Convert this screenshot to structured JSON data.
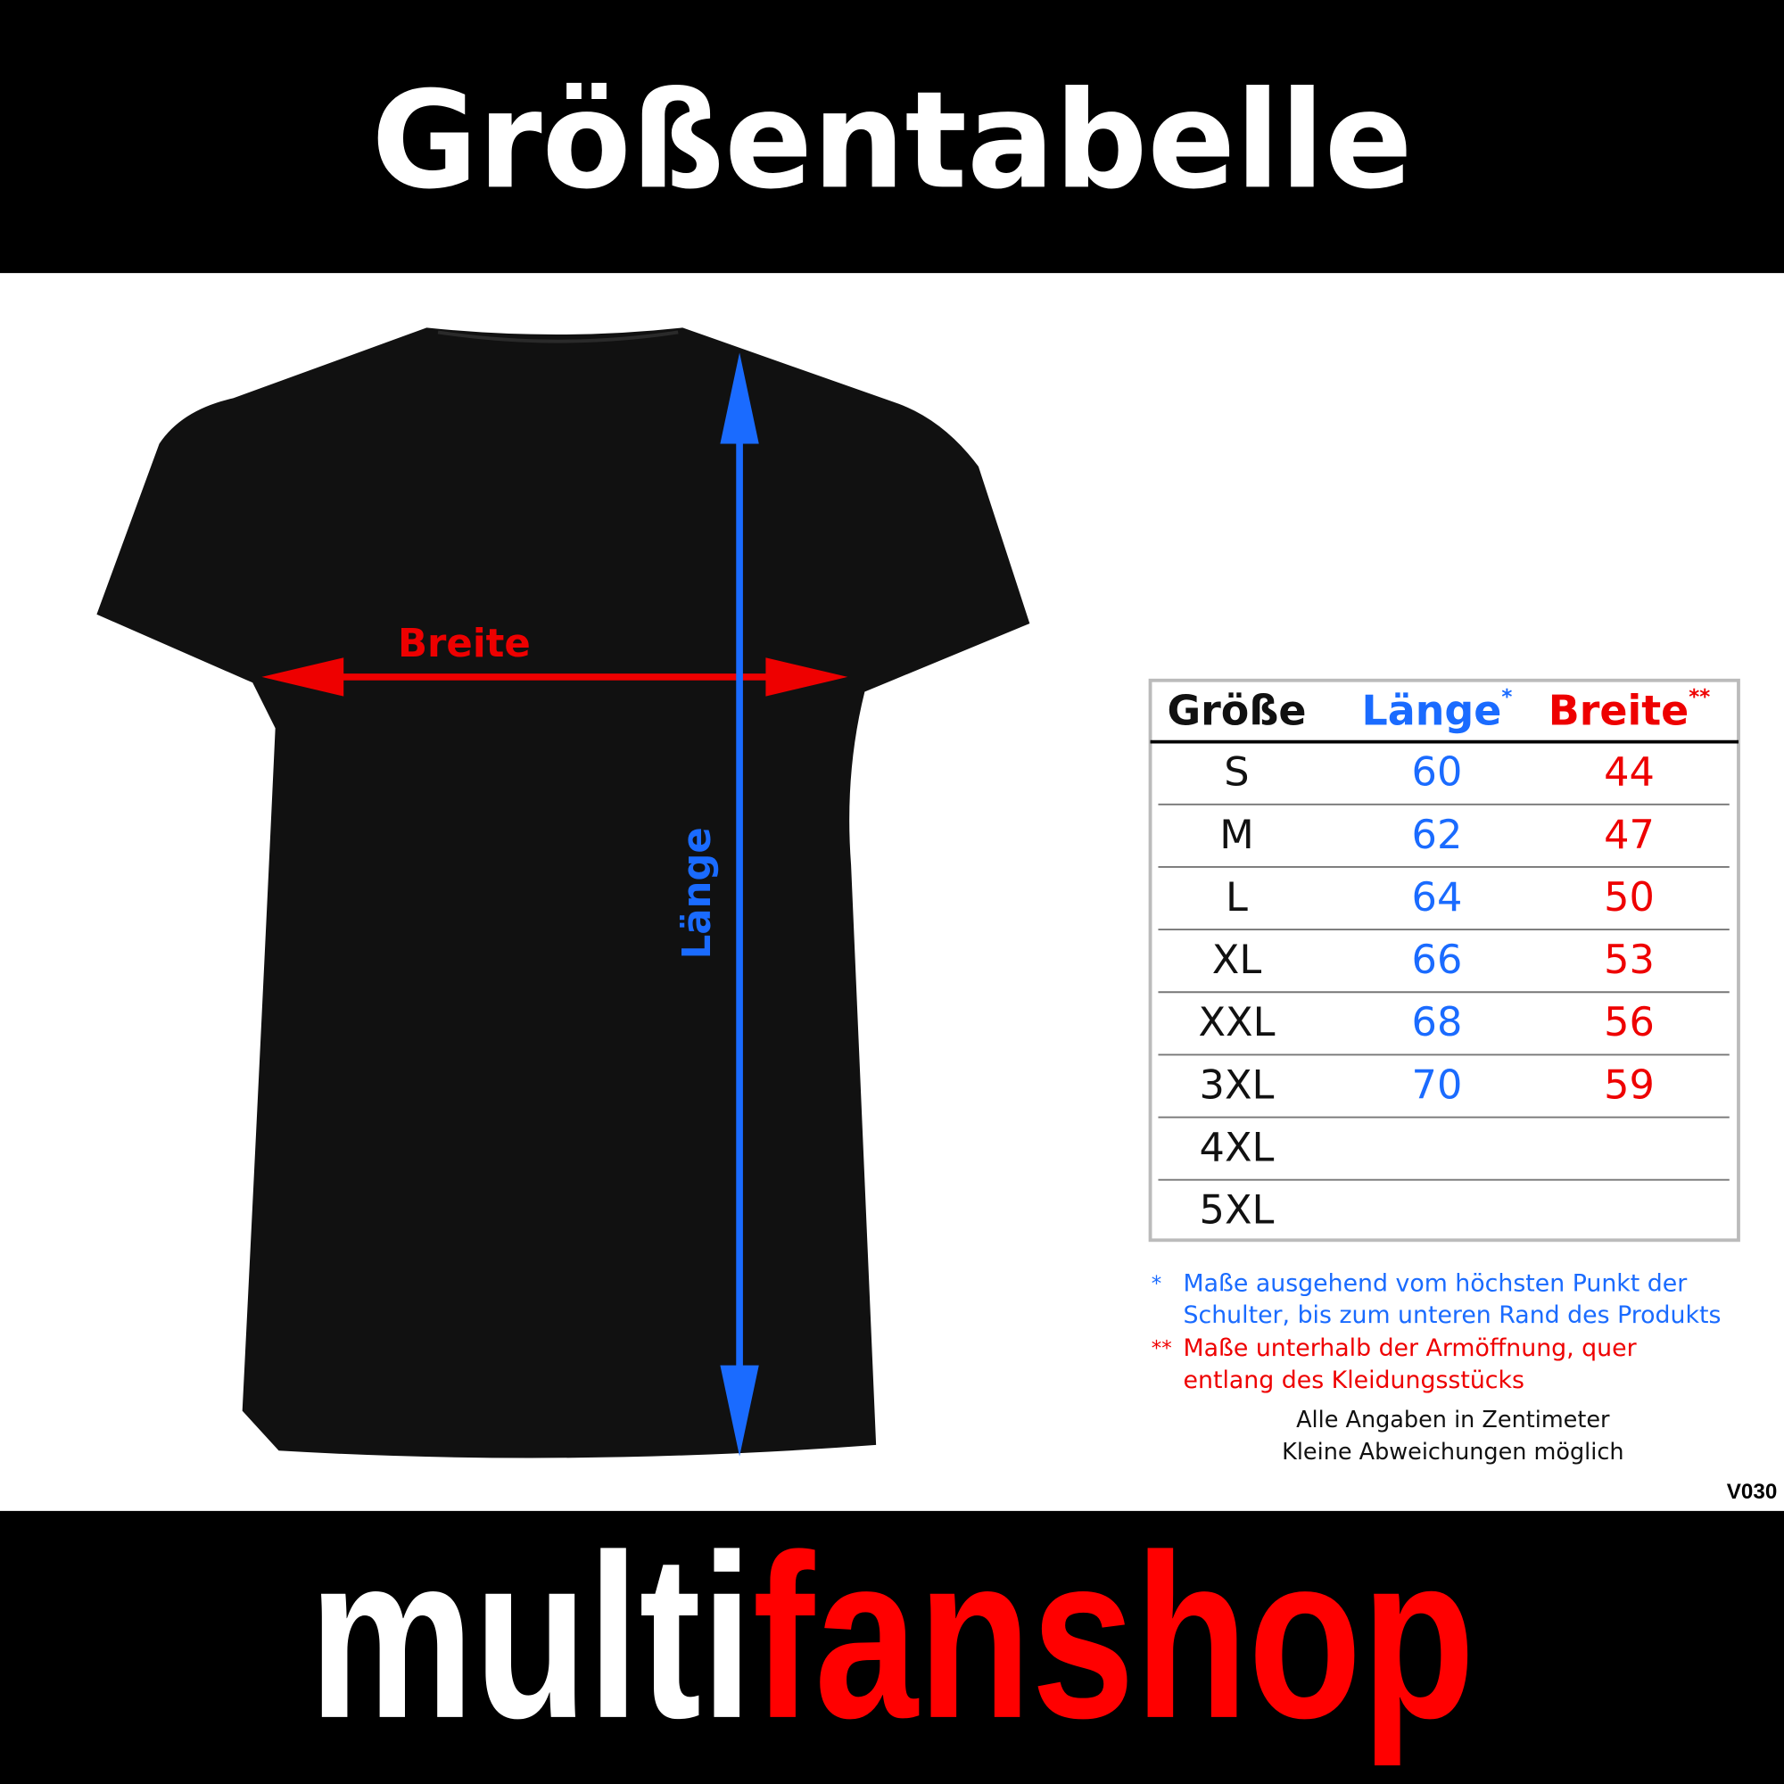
{
  "header": {
    "title": "Größentabelle"
  },
  "illustration": {
    "width_label": "Breite",
    "length_label": "Länge"
  },
  "table": {
    "columns": [
      {
        "label": "Größe"
      },
      {
        "label": "Länge",
        "mark": "*"
      },
      {
        "label": "Breite",
        "mark": "**"
      }
    ],
    "rows": [
      {
        "size": "S",
        "length": "60",
        "width": "44"
      },
      {
        "size": "M",
        "length": "62",
        "width": "47"
      },
      {
        "size": "L",
        "length": "64",
        "width": "50"
      },
      {
        "size": "XL",
        "length": "66",
        "width": "53"
      },
      {
        "size": "XXL",
        "length": "68",
        "width": "56"
      },
      {
        "size": "3XL",
        "length": "70",
        "width": "59"
      },
      {
        "size": "4XL"
      },
      {
        "size": "5XL"
      }
    ]
  },
  "footnotes": [
    {
      "mark": "*",
      "lines": [
        "Maße ausgehend vom höchsten Punkt der",
        "Schulter, bis zum unteren Rand des Produkts"
      ]
    },
    {
      "mark": "**",
      "lines": [
        "Maße unterhalb der Armöffnung, quer",
        "entlang des Kleidungsstücks"
      ]
    }
  ],
  "notes": [
    "Alle Angaben in Zentimeter",
    "Kleine Abweichungen möglich"
  ],
  "version": "V030",
  "footer": {
    "brand_part1": "multi",
    "brand_part2": "fanshop"
  }
}
